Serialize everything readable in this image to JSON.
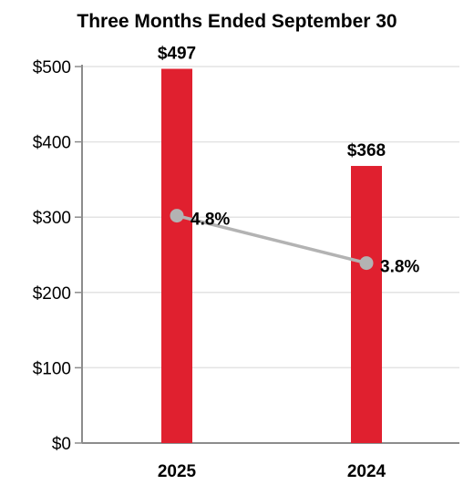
{
  "chart_data": {
    "type": "bar",
    "title": "Three Months Ended September 30",
    "categories": [
      "2025",
      "2024"
    ],
    "bar_values": [
      497,
      368
    ],
    "bar_labels": [
      "$497",
      "$368"
    ],
    "bar_color": "#E0202F",
    "ylim": [
      0,
      500
    ],
    "y_ticks": [
      0,
      100,
      200,
      300,
      400,
      500
    ],
    "y_tick_labels": [
      "$0",
      "$100",
      "$200",
      "$300",
      "$400",
      "$500"
    ],
    "grid": true,
    "line_series": {
      "type": "line",
      "values": [
        4.8,
        3.8
      ],
      "labels": [
        "4.8%",
        "3.8%"
      ],
      "color": "#B3B3B3",
      "note": "plotted on an unlabeled secondary scale"
    }
  }
}
